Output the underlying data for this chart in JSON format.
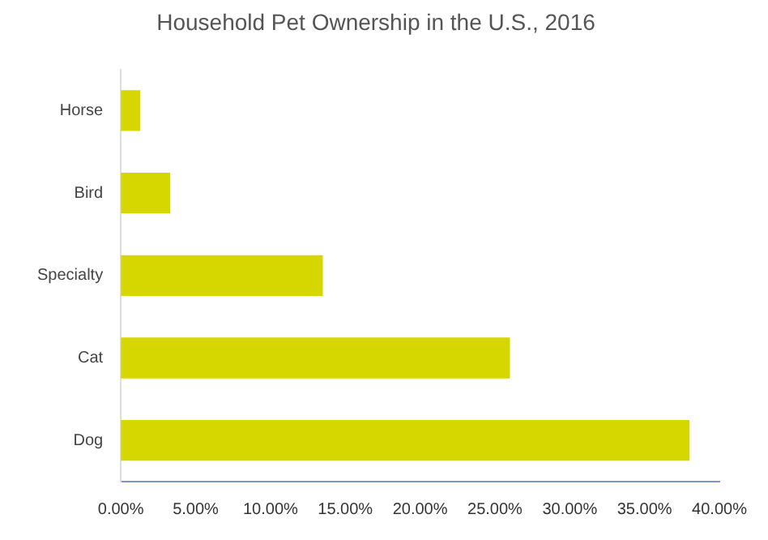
{
  "chart_data": {
    "type": "bar",
    "orientation": "horizontal",
    "title": "Household Pet Ownership in the U.S., 2016",
    "categories": [
      "Horse",
      "Bird",
      "Specialty",
      "Cat",
      "Dog"
    ],
    "values": [
      1.3,
      3.3,
      13.5,
      26,
      38
    ],
    "color": "#d6d600",
    "xlim": [
      0,
      40
    ],
    "xticks": [
      {
        "value": 0,
        "label": "0.00%"
      },
      {
        "value": 5,
        "label": "5.00%"
      },
      {
        "value": 10,
        "label": "10.00%"
      },
      {
        "value": 15,
        "label": "15.00%"
      },
      {
        "value": 20,
        "label": "20.00%"
      },
      {
        "value": 25,
        "label": "25.00%"
      },
      {
        "value": 30,
        "label": "30.00%"
      },
      {
        "value": 35,
        "label": "35.00%"
      },
      {
        "value": 40,
        "label": "40.00%"
      }
    ],
    "grid": false,
    "legend": false
  }
}
